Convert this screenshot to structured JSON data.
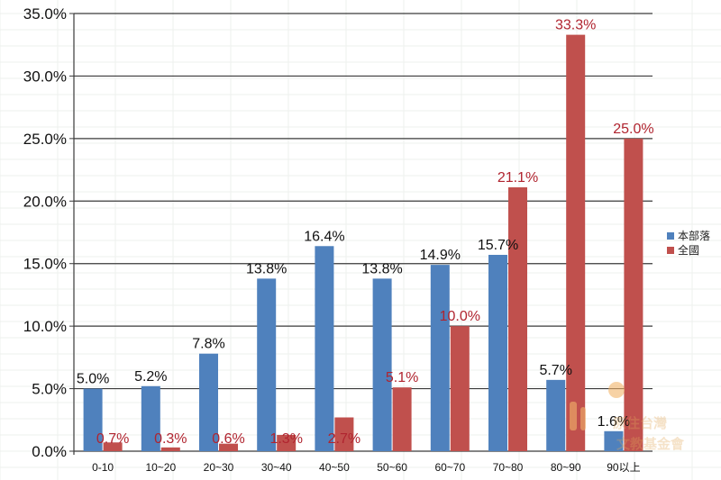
{
  "chart_data": {
    "type": "bar",
    "categories": [
      "0-10",
      "10~20",
      "20~30",
      "30~40",
      "40~50",
      "50~60",
      "60~70",
      "70~80",
      "80~90",
      "90以上"
    ],
    "series": [
      {
        "name": "本部落",
        "color": "#4f81bd",
        "values": [
          5.0,
          5.2,
          7.8,
          13.8,
          16.4,
          13.8,
          14.9,
          15.7,
          5.7,
          1.6
        ],
        "labels": [
          "5.0%",
          "5.2%",
          "7.8%",
          "13.8%",
          "16.4%",
          "13.8%",
          "14.9%",
          "15.7%",
          "5.7%",
          "1.6%"
        ]
      },
      {
        "name": "全國",
        "color": "#c0504d",
        "values": [
          0.7,
          0.3,
          0.6,
          1.3,
          2.7,
          5.1,
          10.0,
          21.1,
          33.3,
          25.0
        ],
        "labels": [
          "0.7%",
          "0.3%",
          "0.6%",
          "1.3%",
          "2.7%",
          "5.1%",
          "10.0%",
          "21.1%",
          "33.3%",
          "25.0%"
        ]
      }
    ],
    "ylim": [
      0,
      35
    ],
    "y_ticks": [
      "0.0%",
      "5.0%",
      "10.0%",
      "15.0%",
      "20.0%",
      "25.0%",
      "30.0%",
      "35.0%"
    ],
    "grid": true,
    "legend_position": "right"
  },
  "watermark": {
    "line1": "原住台灣",
    "line2": "文教基金會"
  }
}
